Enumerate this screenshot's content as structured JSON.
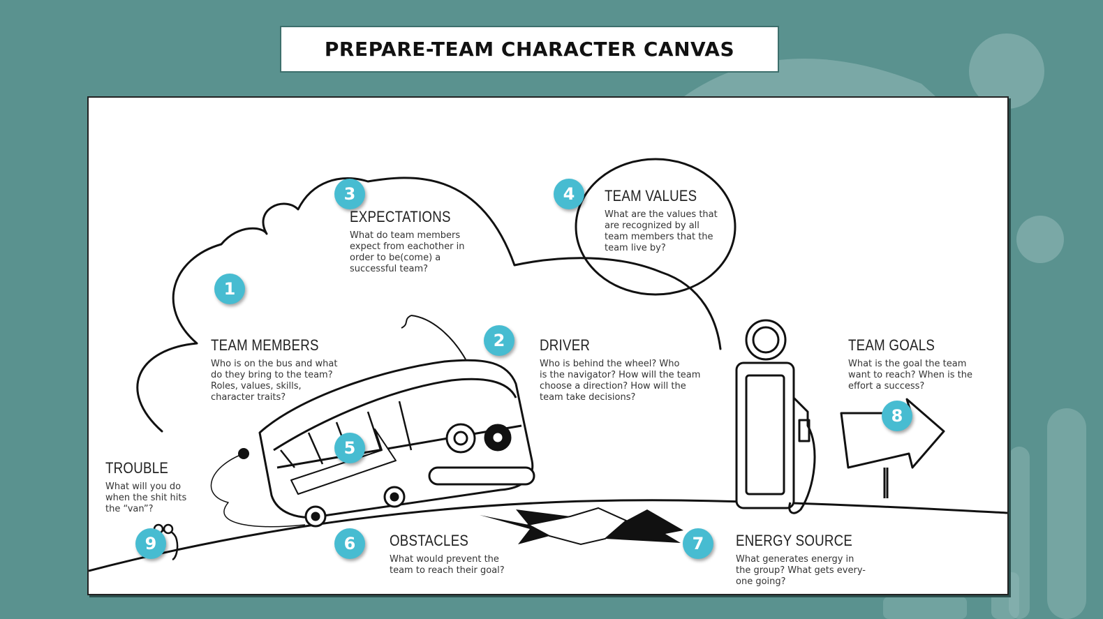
{
  "title": "PREPARE-TEAM CHARACTER CANVAS",
  "colors": {
    "background": "#5a928f",
    "badge": "#47bcd1",
    "canvas": "#ffffff"
  },
  "sections": {
    "team_members": {
      "number": "1",
      "title": "TEAM MEMBERS",
      "lines": [
        "Who is on the bus and what",
        "do they bring to the team?",
        "Roles, values, skills,",
        "character traits?"
      ]
    },
    "driver": {
      "number": "2",
      "title": "DRIVER",
      "lines": [
        "Who is behind the wheel? Who",
        "is the navigator? How will the team",
        "choose a direction? How will the",
        "team take decisions?"
      ]
    },
    "expectations": {
      "number": "3",
      "title": "EXPECTATIONS",
      "lines": [
        "What do team members",
        "expect from eachother in",
        "order to be(come) a",
        "successful team?"
      ]
    },
    "team_values": {
      "number": "4",
      "title": "TEAM VALUES",
      "lines": [
        "What are the values that",
        "are recognized by all",
        "team members that the",
        "team live by?"
      ]
    },
    "banner": {
      "number": "5"
    },
    "obstacles": {
      "number": "6",
      "title": "OBSTACLES",
      "lines": [
        "What would prevent the",
        "team to reach their goal?"
      ]
    },
    "energy_source": {
      "number": "7",
      "title": "ENERGY SOURCE",
      "lines": [
        "What generates energy in",
        "the group? What gets every-",
        "one going?"
      ]
    },
    "team_goals": {
      "number": "8",
      "title": "TEAM GOALS",
      "lines": [
        "What is the goal the team",
        "want to reach? When is the",
        "effort a success?"
      ]
    },
    "trouble": {
      "number": "9",
      "title": "TROUBLE",
      "lines": [
        "What will you do",
        "when the shit hits",
        "the “van”?"
      ]
    }
  }
}
